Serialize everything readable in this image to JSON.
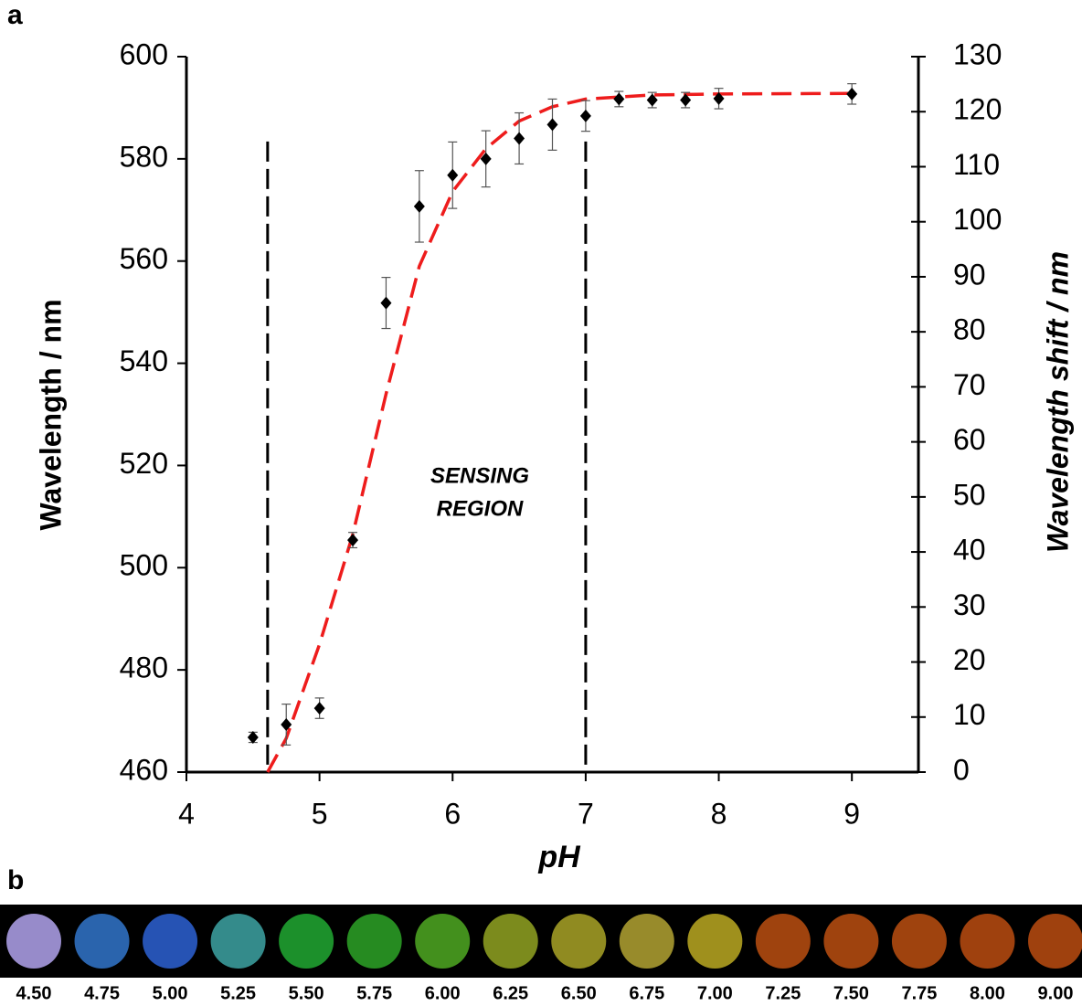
{
  "panel_labels": [
    "a",
    "b"
  ],
  "chart_data": {
    "type": "scatter",
    "xlabel": "pH",
    "ylabel": "Wavelength / nm",
    "y2label": "Wavelength shift / nm",
    "annotation": [
      "SENSING",
      "REGION"
    ],
    "xlim": [
      4,
      9.5
    ],
    "xticks": [
      4,
      5,
      6,
      7,
      8,
      9
    ],
    "ylim": [
      460,
      600
    ],
    "yticks": [
      460,
      480,
      500,
      520,
      540,
      560,
      580,
      600
    ],
    "y2lim": [
      0,
      130
    ],
    "y2ticks": [
      0,
      10,
      20,
      30,
      40,
      50,
      60,
      70,
      80,
      90,
      100,
      110,
      120,
      130
    ],
    "series": [
      {
        "color": "#000000",
        "x": [
          4.5,
          4.75,
          5.0,
          5.25,
          5.5,
          5.75,
          6.0,
          6.25,
          6.5,
          6.75,
          7.0,
          7.25,
          7.5,
          7.75,
          8.0,
          9.0
        ],
        "values": [
          466.8,
          469.3,
          472.5,
          505.4,
          551.8,
          570.7,
          576.8,
          580,
          584,
          586.7,
          588.4,
          591.7,
          591.5,
          591.5,
          591.8,
          592.7
        ],
        "errors": [
          1,
          4,
          2,
          1.5,
          5,
          7,
          6.5,
          5.5,
          5,
          5,
          3,
          1.5,
          1.5,
          1.5,
          2,
          2
        ]
      },
      {
        "color": "#ee1c1c",
        "x": [
          4.61,
          4.75,
          5.0,
          5.25,
          5.5,
          5.75,
          6.0,
          6.25,
          6.5,
          6.75,
          7.0,
          7.5,
          8.0,
          9.0
        ],
        "values": [
          460,
          466.6,
          485,
          506.5,
          534,
          559,
          573.6,
          582,
          587.4,
          590.2,
          591.7,
          592.5,
          592.7,
          592.8
        ]
      }
    ],
    "vlines": [
      4.61,
      7.0
    ],
    "vline_top": 583.4
  },
  "strip": {
    "labels": [
      "4.50",
      "4.75",
      "5.00",
      "5.25",
      "5.50",
      "5.75",
      "6.00",
      "6.25",
      "6.50",
      "6.75",
      "7.00",
      "7.25",
      "7.50",
      "7.75",
      "8.00",
      "9.00"
    ],
    "colors": [
      "#a79ae0",
      "#2f6fc0",
      "#2a5cc8",
      "#3a9a9a",
      "#1fa030",
      "#2a9a25",
      "#4aa020",
      "#8a9a20",
      "#a09a25",
      "#a89a30",
      "#b0a020",
      "#b04a10",
      "#b04a10",
      "#b04a10",
      "#b04810",
      "#b04810"
    ]
  }
}
